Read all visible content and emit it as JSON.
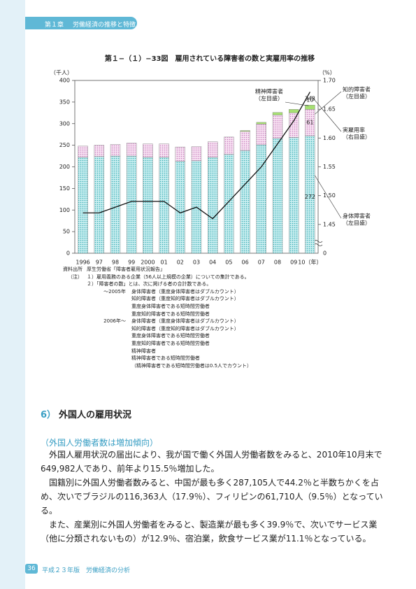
{
  "header": {
    "chapter": "第１章",
    "title": "労働経済の推移と特徴"
  },
  "chart_data": {
    "type": "bar",
    "stacked": true,
    "title": "第１−（１）−33図　雇用されている障害者の数と実雇用率の推移",
    "y_unit": "（千人）",
    "y2_unit": "（%）",
    "categories": [
      "1996",
      "97",
      "98",
      "99",
      "2000",
      "01",
      "02",
      "03",
      "04",
      "05",
      "06",
      "07",
      "08",
      "09",
      "10（年）"
    ],
    "ylim": [
      0,
      400
    ],
    "yticks": [
      0,
      50,
      100,
      150,
      200,
      250,
      300,
      350,
      400
    ],
    "y2lim": [
      1.4,
      1.7
    ],
    "y2ticks": [
      1.45,
      {
        "value": 1.5,
        "label": "1.50"
      },
      1.55,
      {
        "value": 1.6,
        "label": "1.60"
      },
      1.65,
      {
        "value": 1.7,
        "label": "1.70"
      }
    ],
    "y2_floor_label": "0",
    "series": [
      {
        "name": "身体障害者",
        "scale": "（左目盛）",
        "color": "#7fd3d6",
        "values": [
          222,
          224,
          225,
          225,
          222,
          222,
          213,
          214,
          222,
          229,
          238,
          251,
          266,
          268,
          272
        ]
      },
      {
        "name": "知的障害者",
        "scale": "（左目盛）",
        "color": "#efc4e6",
        "values": [
          26,
          26,
          27,
          30,
          31,
          31,
          33,
          33,
          36,
          40,
          44,
          48,
          54,
          57,
          61
        ]
      },
      {
        "name": "精神障害者",
        "scale": "（左目盛）",
        "color": "#a6df72",
        "values": [
          null,
          null,
          null,
          null,
          null,
          null,
          null,
          null,
          null,
          null,
          2,
          4,
          6,
          8,
          10
        ]
      },
      {
        "name": "実雇用率",
        "scale": "（右目盛）",
        "type": "line",
        "axis": "y2",
        "color": "#111111",
        "values": [
          1.47,
          1.47,
          1.48,
          1.49,
          1.49,
          1.49,
          1.47,
          1.48,
          1.46,
          1.49,
          1.52,
          1.55,
          1.59,
          1.63,
          1.68
        ]
      }
    ],
    "total_value": 343
  },
  "notes": {
    "source_label": "資料出所",
    "source": "厚生労働省「障害者雇用状況報告」",
    "note_label": "（注）",
    "lines": [
      "１）雇用義務のある企業（56人以上規模の企業）についての集計である。",
      "２）「障害者の数」とは、次に掲げる者の合計数である。"
    ],
    "periods": [
      {
        "period": "〜2005年",
        "items": [
          "身体障害者（重度身体障害者はダブルカウント）",
          "知的障害者（重度知的障害者はダブルカウント）",
          "重度身体障害者である短時間労働者",
          "重度知的障害者である短時間労働者"
        ]
      },
      {
        "period": "2006年〜",
        "items": [
          "身体障害者（重度身体障害者はダブルカウント）",
          "知的障害者（重度知的障害者はダブルカウント）",
          "重度身体障害者である短時間労働者",
          "重度知的障害者である短時間労働者",
          "精神障害者",
          "精神障害者である短時間労働者",
          "（精神障害者である短時間労働者は0.5人でカウント）"
        ]
      }
    ]
  },
  "section": {
    "number": "6）",
    "heading": "外国人の雇用状況",
    "subheading": "（外国人労働者数は増加傾向）",
    "paragraphs": [
      "外国人雇用状況の届出により、我が国で働く外国人労働者数をみると、2010年10月末で649,982人であり、前年より15.5％増加した。",
      "国籍別に外国人労働者数みると、中国が最も多く287,105人で44.2％と半数ちかくを占め、次いでブラジルの116,363人（17.9％）、フィリピンの61,710人（9.5％）となっている。",
      "また、産業別に外国人労働者をみると、製造業が最も多く39.9％で、次いでサービス業（他に分類されないもの）が12.9％、宿泊業，飲食サービス業が11.1％となっている。"
    ]
  },
  "footer": {
    "page": "36",
    "text": "平成２３年版　労働経済の分析"
  }
}
